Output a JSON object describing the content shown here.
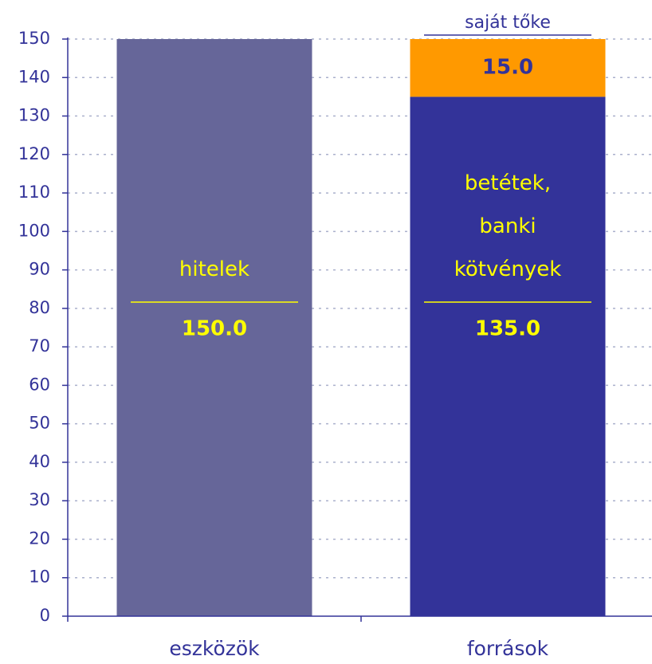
{
  "chart_data": {
    "type": "stacked_bar",
    "categories": [
      "eszközök",
      "források"
    ],
    "series": [
      {
        "name": "hitelek",
        "color": "#666699",
        "values": [
          150,
          null
        ],
        "value_labels": [
          "150.0",
          null
        ]
      },
      {
        "name": "betétek,\nbanki\nkötvények",
        "color": "#333399",
        "values": [
          null,
          135
        ],
        "value_labels": [
          null,
          "135.0"
        ]
      },
      {
        "name": "saját tőke",
        "color": "#ff9900",
        "values": [
          null,
          15
        ],
        "value_labels": [
          null,
          "15.0"
        ]
      }
    ],
    "ylim": [
      0,
      150
    ],
    "yticks": [
      0,
      10,
      20,
      30,
      40,
      50,
      60,
      70,
      80,
      90,
      100,
      110,
      120,
      130,
      140,
      150
    ],
    "grid": true
  }
}
